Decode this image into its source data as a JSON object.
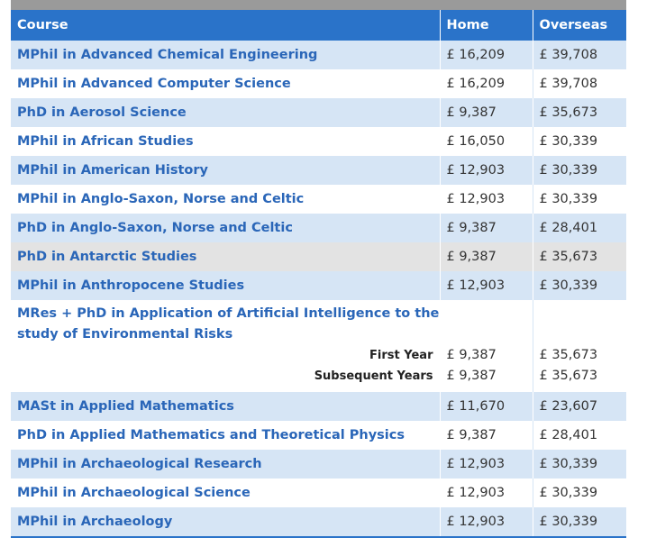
{
  "header": {
    "course": "Course",
    "home": "Home",
    "overseas": "Overseas"
  },
  "rows": [
    {
      "course": "MPhil in Advanced Chemical Engineering",
      "home": "£ 16,209",
      "overseas": "£ 39,708"
    },
    {
      "course": "MPhil in Advanced Computer Science",
      "home": "£ 16,209",
      "overseas": "£ 39,708"
    },
    {
      "course": "PhD in Aerosol Science",
      "home": "£ 9,387",
      "overseas": "£ 35,673"
    },
    {
      "course": "MPhil in African Studies",
      "home": "£ 16,050",
      "overseas": "£ 30,339"
    },
    {
      "course": "MPhil in American History",
      "home": "£ 12,903",
      "overseas": "£ 30,339"
    },
    {
      "course": "MPhil in Anglo-Saxon, Norse and Celtic",
      "home": "£ 12,903",
      "overseas": "£ 30,339"
    },
    {
      "course": "PhD in Anglo-Saxon, Norse and Celtic",
      "home": "£ 9,387",
      "overseas": "£ 28,401"
    },
    {
      "course": "PhD in Antarctic Studies",
      "home": "£ 9,387",
      "overseas": "£ 35,673"
    },
    {
      "course": "MPhil in Anthropocene Studies",
      "home": "£ 12,903",
      "overseas": "£ 30,339"
    },
    {
      "course": "MRes + PhD in Application of Artificial Intelligence to the study of Environmental Risks",
      "sub": [
        {
          "label": "First Year",
          "home": "£ 9,387",
          "overseas": "£ 35,673"
        },
        {
          "label": "Subsequent Years",
          "home": "£ 9,387",
          "overseas": "£ 35,673"
        }
      ]
    },
    {
      "course": "MASt in Applied Mathematics",
      "home": "£ 11,670",
      "overseas": "£ 23,607"
    },
    {
      "course": "PhD in Applied Mathematics and Theoretical Physics",
      "home": "£ 9,387",
      "overseas": "£ 28,401"
    },
    {
      "course": "MPhil in Archaeological Research",
      "home": "£ 12,903",
      "overseas": "£ 30,339"
    },
    {
      "course": "MPhil in Archaeological Science",
      "home": "£ 12,903",
      "overseas": "£ 30,339"
    },
    {
      "course": "MPhil in Archaeology",
      "home": "£ 12,903",
      "overseas": "£ 30,339"
    }
  ]
}
